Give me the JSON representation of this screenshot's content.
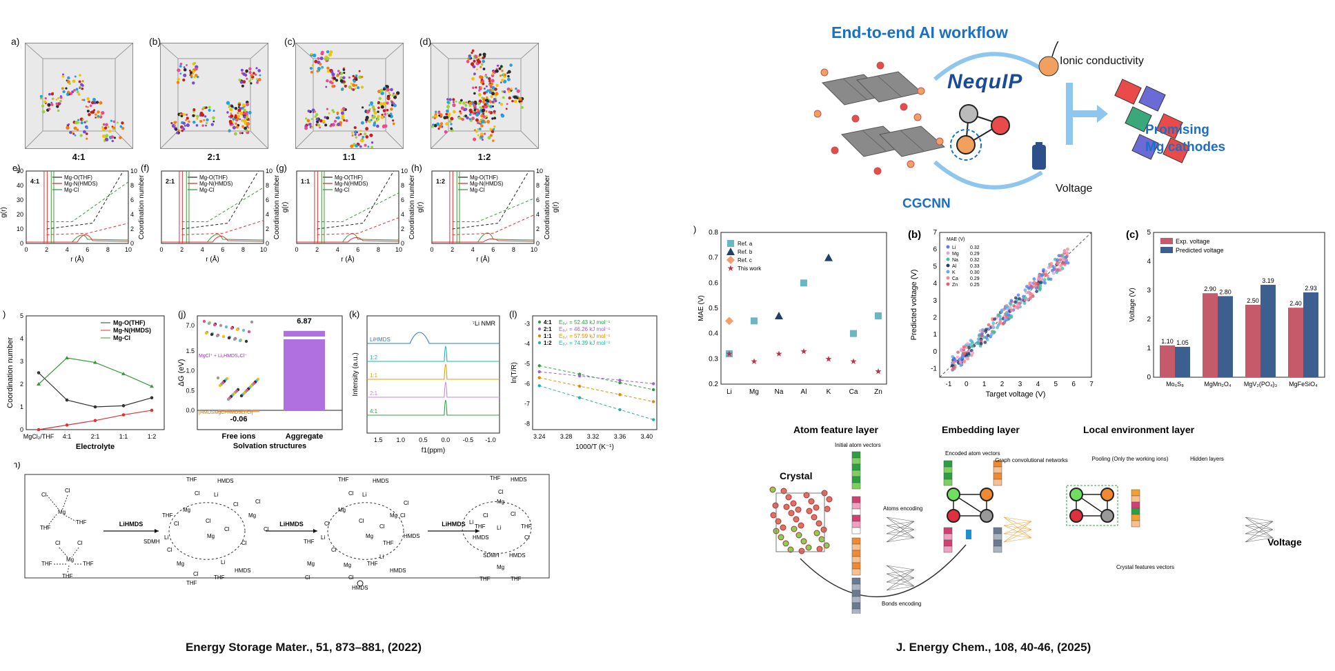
{
  "left_figure": {
    "md_panels": [
      {
        "label": "a)",
        "ratio": "4:1"
      },
      {
        "label": "(b)",
        "ratio": "2:1"
      },
      {
        "label": "(c)",
        "ratio": "1:1"
      },
      {
        "label": "(d)",
        "ratio": "1:2"
      }
    ],
    "rdf_panels": [
      {
        "label": "e)",
        "ratio": "4:1"
      },
      {
        "label": "(f)",
        "ratio": "2:1"
      },
      {
        "label": "(g)",
        "ratio": "1:1"
      },
      {
        "label": "(h)",
        "ratio": "1:2"
      }
    ],
    "rdf_legend": [
      "Mg-O(THF)",
      "Mg-N(HMDS)",
      "Mg-Cl"
    ],
    "rdf_xlabel": "r (Å)",
    "rdf_ylabel_left": "g(r)",
    "rdf_ylabel_right": "Coordination number",
    "rdf_yticks_left": [
      "0",
      "10",
      "20",
      "30",
      "40",
      "50"
    ],
    "rdf_yticks_right": [
      "0",
      "2",
      "4",
      "6",
      "8",
      "10"
    ],
    "rdf_xticks": [
      "0",
      "2",
      "4",
      "6",
      "8",
      "10"
    ],
    "panel_i": {
      "label": ")",
      "ylabel": "Coordination number",
      "xlabel": "Electrolyte",
      "categories": [
        "MgCl₂/THF",
        "4:1",
        "2:1",
        "1:1",
        "1:2"
      ],
      "yticks": [
        "0",
        "1",
        "2",
        "3",
        "4",
        "5"
      ],
      "legend": [
        "Mg-O(THF)",
        "Mg-N(HMDS)",
        "Mg-Cl"
      ]
    },
    "panel_j": {
      "label": "(j)",
      "ylabel": "ΔG (eV)",
      "xlabel": "Solvation structures",
      "categories": [
        "Free ions",
        "Aggregate"
      ],
      "values_text": [
        "-0.06",
        "6.87"
      ],
      "yticks": [
        "0.0",
        "0.5",
        "1.0",
        "1.5",
        "7.0"
      ],
      "species1": "MgCl⁺ + Li₂HMDS₂Cl⁻",
      "species2": "[HMDSMgCl-HMDSLi₂Cl]"
    },
    "panel_k": {
      "label": "(k)",
      "title": "⁷Li NMR",
      "ylabel": "Intensity (a.u.)",
      "xlabel": "f1(ppm)",
      "traces": [
        "LiHMDS",
        "1:2",
        "1:1",
        "2:1",
        "4:1"
      ],
      "xticks": [
        "1.5",
        "1.0",
        "0.5",
        "0.0",
        "-0.5",
        "-1.0"
      ]
    },
    "panel_l": {
      "label": "(l)",
      "ylabel": "ln(T/R)",
      "xlabel": "1000/T (K⁻¹)",
      "legend": [
        {
          "ratio": "4:1",
          "text": "Eₐ,ₜ = 52.43 kJ mol⁻¹"
        },
        {
          "ratio": "2:1",
          "text": "Eₐ,ₜ = 46.26 kJ mol⁻¹"
        },
        {
          "ratio": "1:1",
          "text": "Eₐ,ₜ = 57.59 kJ mol⁻¹"
        },
        {
          "ratio": "1:2",
          "text": "Eₐ,ₜ = 74.39 kJ mol⁻¹"
        }
      ],
      "xticks": [
        "3.24",
        "3.28",
        "3.32",
        "3.36",
        "3.40"
      ],
      "yticks": [
        "-3",
        "-4",
        "-5",
        "-6",
        "-7",
        "-8"
      ]
    },
    "panel_m": {
      "label": "n)",
      "arrow_label": "LiHMDS",
      "labels": [
        "Cl",
        "Mg",
        "THF",
        "SDMH",
        "Li",
        "HMDS",
        "Cl"
      ]
    },
    "citation": "Energy Storage Mater., 51, 873–881, (2022)"
  },
  "right_figure": {
    "workflow_title": "End-to-end AI workflow",
    "nequip": "NequIP",
    "cgcnn": "CGCNN",
    "ionic": "Ionic conductivity",
    "voltage": "Voltage",
    "promising": "Promising",
    "mg_cathodes": "Mg cathodes",
    "panel_a": {
      "label": ")",
      "ylabel": "MAE (V)",
      "categories": [
        "Li",
        "Mg",
        "Na",
        "Al",
        "K",
        "Ca",
        "Zn"
      ],
      "yticks": [
        "0.2",
        "0.3",
        "0.4",
        "0.5",
        "0.6",
        "0.7",
        "0.8"
      ],
      "legend": [
        "Ref. a",
        "Ref. b",
        "Ref. c",
        "This work"
      ]
    },
    "panel_b": {
      "label": "(b)",
      "xlabel": "Target voltage (V)",
      "ylabel": "Predicted voltage (V)",
      "legend_title": "MAE (V)",
      "legend": [
        {
          "el": "Li",
          "v": "0.32"
        },
        {
          "el": "Mg",
          "v": "0.29"
        },
        {
          "el": "Na",
          "v": "0.32"
        },
        {
          "el": "Al",
          "v": "0.33"
        },
        {
          "el": "K",
          "v": "0.30"
        },
        {
          "el": "Ca",
          "v": "0.29"
        },
        {
          "el": "Zn",
          "v": "0.25"
        }
      ],
      "ticks": [
        "-1",
        "0",
        "1",
        "2",
        "3",
        "4",
        "5",
        "6",
        "7"
      ]
    },
    "panel_c": {
      "label": "(c)",
      "ylabel": "Voltage (V)",
      "legend": [
        "Exp. voltage",
        "Predicted voltage"
      ],
      "categories": [
        "Mo₆S₈",
        "MgMn₂O₄",
        "MgV₂(PO₄)₃",
        "MgFeSiO₄"
      ],
      "exp_labels": [
        "1.10",
        "2.90",
        "2.50",
        "2.40"
      ],
      "pred_labels": [
        "1.05",
        "2.80",
        "3.19",
        "2.93"
      ],
      "yticks": [
        "0",
        "1",
        "2",
        "3",
        "4",
        "5"
      ]
    },
    "arch": {
      "layer1": "Atom feature layer",
      "layer2": "Embedding layer",
      "layer3": "Local environment layer",
      "crystal": "Crystal",
      "initial": "Initial atom vectors",
      "atoms_enc": "Atoms encoding",
      "bonds_enc": "Bonds encoding",
      "encoded": "Encoded atom vectors",
      "graph_conv": "Graph convolutional networks",
      "pooling": "Pooling (Only the working ions)",
      "hidden": "Hidden layers",
      "crystal_feat": "Crystal features vectors",
      "voltage": "Voltage"
    },
    "citation": "J. Energy Chem., 108, 40-46, (2025)"
  },
  "chart_data": [
    {
      "type": "line",
      "title": "",
      "xlabel": "Electrolyte",
      "ylabel": "Coordination number",
      "categories": [
        "MgCl₂/THF",
        "4:1",
        "2:1",
        "1:1",
        "1:2"
      ],
      "series": [
        {
          "name": "Mg-O(THF)",
          "values": [
            2.5,
            1.3,
            1.0,
            1.05,
            1.4
          ]
        },
        {
          "name": "Mg-N(HMDS)",
          "values": [
            0.0,
            0.2,
            0.4,
            0.65,
            0.85
          ]
        },
        {
          "name": "Mg-Cl",
          "values": [
            2.0,
            3.15,
            2.95,
            2.45,
            1.9
          ]
        }
      ],
      "ylim": [
        0,
        5
      ]
    },
    {
      "type": "bar",
      "xlabel": "Solvation structures",
      "ylabel": "ΔG (eV)",
      "categories": [
        "Free ions",
        "Aggregate"
      ],
      "values": [
        -0.06,
        6.87
      ]
    },
    {
      "type": "scatter",
      "xlabel": "",
      "ylabel": "MAE (V)",
      "categories": [
        "Li",
        "Mg",
        "Na",
        "Al",
        "K",
        "Ca",
        "Zn"
      ],
      "series": [
        {
          "name": "Ref. a",
          "points": [
            [
              "Li",
              0.32
            ],
            [
              "Mg",
              0.45
            ],
            [
              "Al",
              0.6
            ],
            [
              "Ca",
              0.4
            ],
            [
              "Zn",
              0.47
            ]
          ]
        },
        {
          "name": "Ref. b",
          "points": [
            [
              "Na",
              0.47
            ],
            [
              "K",
              0.7
            ]
          ]
        },
        {
          "name": "Ref. c",
          "points": [
            [
              "Li",
              0.45
            ]
          ]
        },
        {
          "name": "This work",
          "points": [
            [
              "Li",
              0.32
            ],
            [
              "Mg",
              0.29
            ],
            [
              "Na",
              0.32
            ],
            [
              "Al",
              0.33
            ],
            [
              "K",
              0.3
            ],
            [
              "Ca",
              0.29
            ],
            [
              "Zn",
              0.25
            ]
          ]
        }
      ],
      "ylim": [
        0.2,
        0.8
      ]
    },
    {
      "type": "bar",
      "xlabel": "",
      "ylabel": "Voltage (V)",
      "categories": [
        "Mo₆S₈",
        "MgMn₂O₄",
        "MgV₂(PO₄)₃",
        "MgFeSiO₄"
      ],
      "series": [
        {
          "name": "Exp. voltage",
          "values": [
            1.1,
            2.9,
            2.5,
            2.4
          ]
        },
        {
          "name": "Predicted voltage",
          "values": [
            1.05,
            2.8,
            3.19,
            2.93
          ]
        }
      ],
      "ylim": [
        0,
        5
      ]
    }
  ],
  "colors": {
    "brand_blue": "#1b6fc4",
    "bar_exp": "#c45a6a",
    "bar_pred": "#3d5f8f",
    "mg_o": "#333333",
    "mg_n": "#e03030",
    "mg_cl": "#3a9a3a",
    "purple_bar": "#b070e0"
  }
}
